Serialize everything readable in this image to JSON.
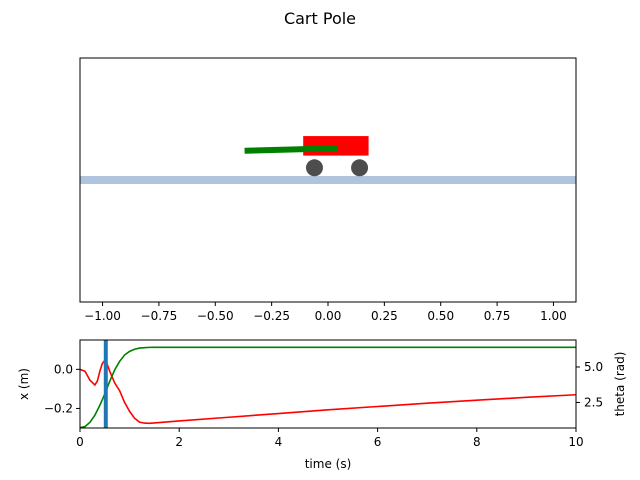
{
  "figure": {
    "title": "Cart Pole"
  },
  "chart_data": [
    {
      "type": "animation-frame",
      "title": "Cart Pole",
      "xlim": [
        -1.1,
        1.1
      ],
      "ylim": [
        -0.5,
        0.5
      ],
      "xticks": [
        "−1.00",
        "−0.75",
        "−0.50",
        "−0.25",
        "0.00",
        "0.25",
        "0.50",
        "0.75",
        "1.00"
      ],
      "xtick_values": [
        -1.0,
        -0.75,
        -0.5,
        -0.25,
        0.0,
        0.25,
        0.5,
        0.75,
        1.0
      ],
      "show_yticks": false,
      "track": {
        "y": 0.0,
        "color": "#b0c4de"
      },
      "cart": {
        "x_left": -0.11,
        "x_right": 0.18,
        "y_bottom": 0.1,
        "y_top": 0.18,
        "color": "#ff0000"
      },
      "wheels": {
        "x": [
          -0.06,
          0.14
        ],
        "y": 0.05,
        "color": "#4d4d4d"
      },
      "pole": {
        "x_start": 0.04,
        "y_start": 0.13,
        "x_end": -0.37,
        "y_end": 0.12,
        "color": "#008000"
      }
    },
    {
      "type": "line",
      "xlabel": "time (s)",
      "ylabel_left": "x (m)",
      "ylabel_right": "theta (rad)",
      "xlim": [
        0,
        10
      ],
      "ylim_left": [
        -0.3,
        0.15
      ],
      "ylim_right": [
        0.7,
        6.9
      ],
      "xticks": [
        "0",
        "2",
        "4",
        "6",
        "8",
        "10"
      ],
      "xtick_values": [
        0,
        2,
        4,
        6,
        8,
        10
      ],
      "yticks_left": [
        "−0.2",
        "0.0"
      ],
      "ytick_values_left": [
        -0.2,
        0.0
      ],
      "yticks_right": [
        "2.5",
        "5.0"
      ],
      "ytick_values_right": [
        2.5,
        5.0
      ],
      "current_time": 0.52,
      "current_time_color": "#1f77b4",
      "series": [
        {
          "axis": "left",
          "color": "#ff0000",
          "x": [
            0,
            0.1,
            0.2,
            0.3,
            0.35,
            0.4,
            0.45,
            0.5,
            0.55,
            0.6,
            0.7,
            0.8,
            0.9,
            1.0,
            1.1,
            1.2,
            1.3,
            1.4,
            1.5,
            2,
            3,
            4,
            5,
            6,
            7,
            8,
            9,
            10
          ],
          "y": [
            0.0,
            -0.01,
            -0.055,
            -0.08,
            -0.06,
            -0.01,
            0.03,
            0.045,
            0.025,
            -0.01,
            -0.07,
            -0.11,
            -0.17,
            -0.215,
            -0.25,
            -0.27,
            -0.275,
            -0.276,
            -0.274,
            -0.264,
            -0.245,
            -0.226,
            -0.207,
            -0.19,
            -0.173,
            -0.158,
            -0.143,
            -0.13
          ]
        },
        {
          "axis": "right",
          "color": "#008000",
          "x": [
            0,
            0.1,
            0.2,
            0.3,
            0.4,
            0.5,
            0.6,
            0.7,
            0.8,
            0.9,
            1.0,
            1.1,
            1.2,
            1.3,
            1.4,
            1.5,
            2,
            3,
            4,
            5,
            6,
            7,
            8,
            9,
            10
          ],
          "y": [
            0.72,
            0.8,
            1.1,
            1.6,
            2.3,
            3.1,
            4.0,
            4.8,
            5.4,
            5.85,
            6.1,
            6.25,
            6.33,
            6.36,
            6.38,
            6.385,
            6.385,
            6.385,
            6.385,
            6.385,
            6.385,
            6.385,
            6.385,
            6.385,
            6.385
          ]
        }
      ]
    }
  ]
}
